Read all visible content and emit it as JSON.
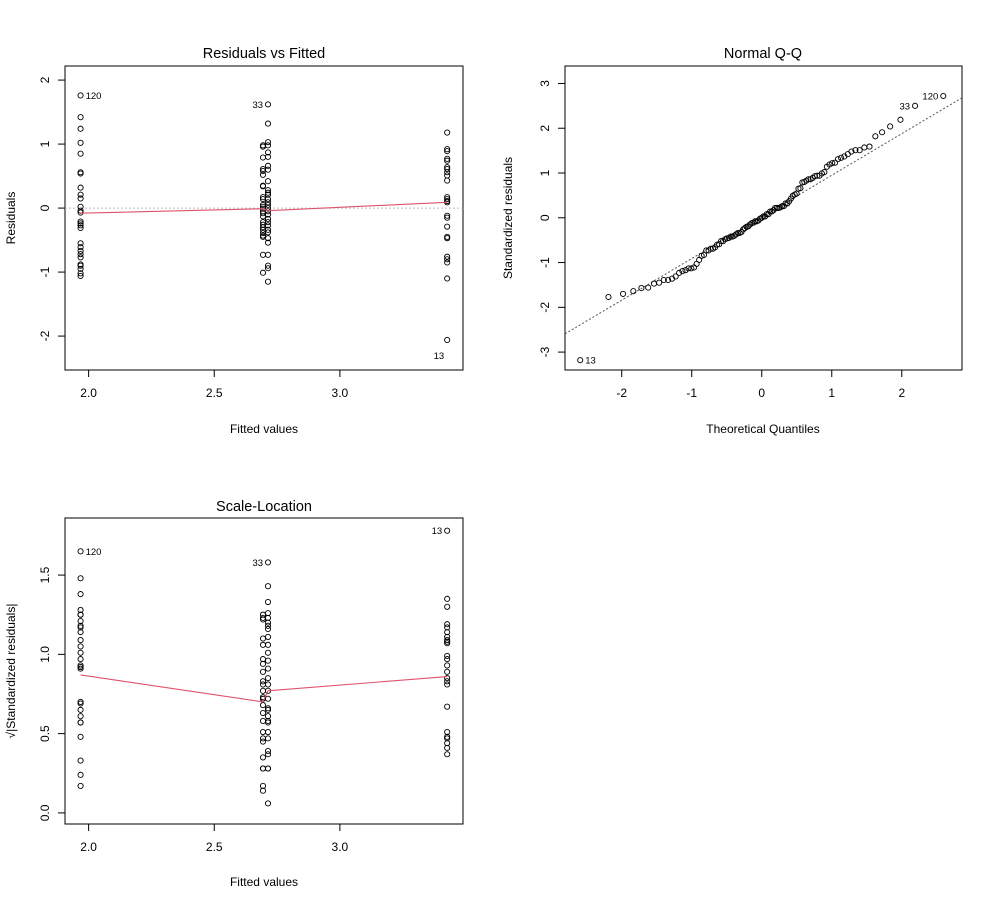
{
  "chart_data": [
    {
      "type": "scatter",
      "title": "Residuals vs Fitted",
      "xlabel": "Fitted values",
      "ylabel": "Residuals",
      "xlim": [
        1.906,
        3.49
      ],
      "ylim": [
        -2.53,
        2.22
      ],
      "x_ticks": [
        "2.0",
        "2.5",
        "3.0"
      ],
      "y_ticks": [
        "-2",
        "-1",
        "0",
        "1",
        "2"
      ],
      "reference_line": {
        "y": 0,
        "style": "dotted",
        "color": "#BEBEBE"
      },
      "smooth_color": "#DF536B",
      "smooth": [
        [
          1.968,
          -0.08
        ],
        [
          2.694,
          -0.01
        ],
        [
          2.714,
          -0.04
        ],
        [
          3.427,
          0.09
        ]
      ],
      "groups": [
        {
          "fitted": 1.968,
          "values": [
            1.76,
            1.42,
            1.24,
            1.02,
            0.85,
            0.56,
            0.54,
            0.32,
            0.21,
            0.15,
            0.02,
            -0.04,
            -0.07,
            -0.21,
            -0.24,
            -0.27,
            -0.31,
            -0.55,
            -0.61,
            -0.67,
            -0.72,
            -0.77,
            -0.88,
            -0.9,
            -0.95,
            -1.02,
            -1.06
          ]
        },
        {
          "fitted": 2.694,
          "values": [
            0.98,
            0.96,
            0.79,
            0.61,
            0.58,
            0.52,
            0.35,
            0.34,
            0.17,
            0.14,
            0.05,
            0.02,
            -0.01,
            -0.05,
            -0.08,
            -0.13,
            -0.22,
            -0.26,
            -0.3,
            -0.34,
            -0.39,
            -0.43,
            -0.45,
            -0.73,
            -1.01
          ]
        },
        {
          "fitted": 2.714,
          "values": [
            1.62,
            1.32,
            1.03,
            0.98,
            0.87,
            0.8,
            0.66,
            0.6,
            0.42,
            0.28,
            0.24,
            0.21,
            0.14,
            0.09,
            0.05,
            0.0,
            -0.05,
            -0.1,
            -0.17,
            -0.22,
            -0.27,
            -0.34,
            -0.38,
            -0.47,
            -0.54,
            -0.73,
            -0.9,
            -0.94,
            -1.15
          ]
        },
        {
          "fitted": 3.427,
          "values": [
            1.18,
            0.92,
            0.89,
            0.77,
            0.74,
            0.64,
            0.61,
            0.56,
            0.51,
            0.43,
            0.17,
            0.14,
            0.11,
            0.09,
            -0.12,
            -0.15,
            -0.29,
            -0.45,
            -0.47,
            -0.76,
            -0.8,
            -0.85,
            -1.1,
            -2.06
          ]
        }
      ],
      "point_labels": [
        {
          "label": "120",
          "x": 1.968,
          "y": 1.76,
          "side": "right"
        },
        {
          "label": "33",
          "x": 2.714,
          "y": 1.62,
          "side": "left"
        },
        {
          "label": "13",
          "x": 3.427,
          "y": -2.06,
          "side": "below-left"
        }
      ]
    },
    {
      "type": "scatter",
      "subtype": "qq",
      "title": "Normal Q-Q",
      "xlabel": "Theoretical Quantiles",
      "ylabel": "Standardized residuals",
      "xlim": [
        -2.81,
        2.86
      ],
      "ylim": [
        -3.4,
        3.39
      ],
      "x_ticks": [
        "-2",
        "-1",
        "0",
        "1",
        "2"
      ],
      "y_ticks": [
        "-3",
        "-2",
        "-1",
        "0",
        "1",
        "2",
        "3"
      ],
      "reference_line": {
        "intercept": 0.02,
        "slope": 0.93,
        "style": "dotted",
        "color": "#555555"
      },
      "sample": [
        2.72,
        2.19,
        1.91,
        1.57,
        1.31,
        0.86,
        0.83,
        0.49,
        0.32,
        0.23,
        0.03,
        -0.06,
        -0.11,
        -0.32,
        -0.37,
        -0.42,
        -0.48,
        -0.85,
        -0.94,
        -1.03,
        -1.11,
        -1.19,
        -1.36,
        -1.39,
        -1.47,
        -1.57,
        -1.64,
        1.51,
        1.48,
        1.22,
        0.94,
        0.89,
        0.8,
        0.54,
        0.52,
        0.26,
        0.22,
        0.08,
        0.03,
        -0.02,
        -0.08,
        -0.12,
        -0.2,
        -0.34,
        -0.4,
        -0.46,
        -0.52,
        -0.6,
        -0.66,
        -0.69,
        -1.13,
        -1.56,
        2.5,
        2.04,
        1.59,
        1.51,
        1.34,
        1.23,
        1.02,
        0.93,
        0.65,
        0.43,
        0.37,
        0.32,
        0.22,
        0.14,
        0.08,
        0.0,
        -0.08,
        -0.15,
        -0.26,
        -0.34,
        -0.42,
        -0.52,
        -0.59,
        -0.73,
        -0.83,
        -1.13,
        -1.39,
        -1.45,
        -1.77,
        1.82,
        1.42,
        1.37,
        1.19,
        1.14,
        0.99,
        0.94,
        0.86,
        0.79,
        0.66,
        0.26,
        0.22,
        0.17,
        0.14,
        -0.19,
        -0.23,
        -0.45,
        -0.69,
        -0.73,
        -1.17,
        -1.23,
        -1.31,
        -1.7,
        -3.18
      ],
      "point_labels": [
        {
          "label": "120",
          "value": 2.72,
          "side": "left"
        },
        {
          "label": "33",
          "value": 2.5,
          "side": "left"
        },
        {
          "label": "13",
          "value": -3.18,
          "side": "right"
        }
      ]
    },
    {
      "type": "scatter",
      "title": "Scale-Location",
      "xlabel": "Fitted values",
      "ylabel": "√|Standardized residuals|",
      "xlim": [
        1.906,
        3.49
      ],
      "ylim": [
        -0.07,
        1.86
      ],
      "x_ticks": [
        "2.0",
        "2.5",
        "3.0"
      ],
      "y_ticks": [
        "0.0",
        "0.5",
        "1.0",
        "1.5"
      ],
      "smooth_color": "#DF536B",
      "smooth": [
        [
          1.968,
          0.87
        ],
        [
          2.694,
          0.7
        ],
        [
          2.714,
          0.77
        ],
        [
          3.427,
          0.86
        ]
      ],
      "groups": [
        {
          "fitted": 1.968,
          "values": [
            1.65,
            1.48,
            1.38,
            1.25,
            1.14,
            0.93,
            0.91,
            0.7,
            0.57,
            0.48,
            0.17,
            0.24,
            0.33,
            0.57,
            0.61,
            0.65,
            0.69,
            0.92,
            0.97,
            1.01,
            1.05,
            1.09,
            1.17,
            1.18,
            1.21,
            1.25,
            1.28
          ]
        },
        {
          "fitted": 2.694,
          "values": [
            1.23,
            1.22,
            1.1,
            0.97,
            0.94,
            0.89,
            0.73,
            0.72,
            0.51,
            0.47,
            0.28,
            0.17,
            0.14,
            0.28,
            0.35,
            0.45,
            0.58,
            0.63,
            0.68,
            0.72,
            0.77,
            0.81,
            0.83,
            1.06,
            1.25
          ]
        },
        {
          "fitted": 2.714,
          "values": [
            1.58,
            1.43,
            1.26,
            1.23,
            1.16,
            1.11,
            1.01,
            0.96,
            0.81,
            0.66,
            0.61,
            0.57,
            0.47,
            0.37,
            0.28,
            0.06,
            0.28,
            0.39,
            0.51,
            0.58,
            0.65,
            0.72,
            0.77,
            0.85,
            0.91,
            1.06,
            1.18,
            1.2,
            1.33
          ]
        },
        {
          "fitted": 3.427,
          "values": [
            1.35,
            1.19,
            1.17,
            1.09,
            1.07,
            0.99,
            0.97,
            0.93,
            0.89,
            0.81,
            0.51,
            0.47,
            0.41,
            0.37,
            0.44,
            0.48,
            0.67,
            0.83,
            0.85,
            1.08,
            1.11,
            1.14,
            1.3,
            1.78
          ]
        }
      ],
      "point_labels": [
        {
          "label": "120",
          "x": 1.968,
          "y": 1.65,
          "side": "right"
        },
        {
          "label": "33",
          "x": 2.714,
          "y": 1.58,
          "side": "left"
        },
        {
          "label": "13",
          "x": 3.427,
          "y": 1.78,
          "side": "left"
        }
      ]
    }
  ]
}
